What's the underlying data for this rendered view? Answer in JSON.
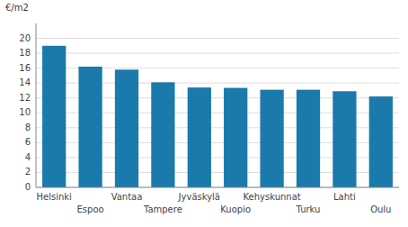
{
  "chart_data": {
    "type": "bar",
    "ylabel": "€/m2",
    "categories": [
      "Helsinki",
      "Espoo",
      "Vantaa",
      "Tampere",
      "Jyväskylä",
      "Kuopio",
      "Kehyskunnat",
      "Turku",
      "Lahti",
      "Oulu"
    ],
    "values": [
      19.0,
      16.2,
      15.8,
      14.1,
      13.4,
      13.35,
      13.1,
      13.1,
      12.9,
      12.2
    ],
    "color": "#1a7aab",
    "ylim": [
      0,
      22
    ],
    "yticks": [
      0,
      2,
      4,
      6,
      8,
      10,
      12,
      14,
      16,
      18,
      20
    ],
    "grid": true
  }
}
